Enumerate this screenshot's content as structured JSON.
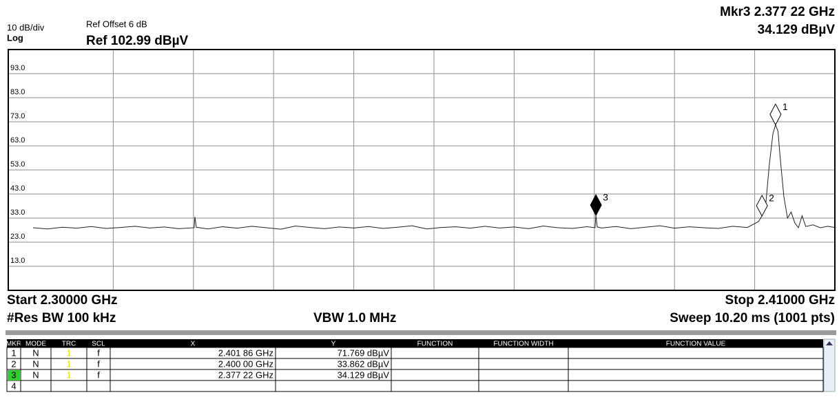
{
  "header": {
    "scale": "10 dB/div",
    "scale_type": "Log",
    "ref_offset": "Ref Offset 6 dB",
    "ref_level": "Ref 102.99 dBµV",
    "marker_freq": "Mkr3 2.377 22 GHz",
    "marker_level": "34.129 dBµV"
  },
  "chart_data": {
    "type": "line",
    "xlim": [
      2.3,
      2.41
    ],
    "ylim": [
      2.99,
      102.99
    ],
    "yticks": [
      {
        "value": 92.99,
        "label": "93.0"
      },
      {
        "value": 82.99,
        "label": "83.0"
      },
      {
        "value": 72.99,
        "label": "73.0"
      },
      {
        "value": 62.99,
        "label": "63.0"
      },
      {
        "value": 52.99,
        "label": "53.0"
      },
      {
        "value": 42.99,
        "label": "43.0"
      },
      {
        "value": 32.99,
        "label": "33.0"
      },
      {
        "value": 22.99,
        "label": "23.0"
      },
      {
        "value": 12.99,
        "label": "13.0"
      }
    ],
    "grid": true,
    "color": "#202020",
    "x": [
      2.3,
      2.302,
      2.304,
      2.306,
      2.308,
      2.31,
      2.312,
      2.314,
      2.316,
      2.318,
      2.32,
      2.3221,
      2.3222,
      2.3224,
      2.324,
      2.326,
      2.328,
      2.33,
      2.332,
      2.334,
      2.336,
      2.338,
      2.34,
      2.342,
      2.344,
      2.346,
      2.348,
      2.35,
      2.352,
      2.354,
      2.356,
      2.358,
      2.36,
      2.362,
      2.364,
      2.366,
      2.368,
      2.37,
      2.372,
      2.374,
      2.376,
      2.3771,
      2.37722,
      2.3774,
      2.378,
      2.38,
      2.382,
      2.384,
      2.386,
      2.388,
      2.39,
      2.392,
      2.394,
      2.396,
      2.398,
      2.3995,
      2.4,
      2.4005,
      2.401,
      2.4015,
      2.40186,
      2.4022,
      2.4025,
      2.403,
      2.4035,
      2.404,
      2.4045,
      2.405,
      2.4055,
      2.406,
      2.407,
      2.408,
      2.409,
      2.41
    ],
    "values": [
      29,
      28.5,
      29.2,
      28.8,
      29.5,
      28.7,
      29.1,
      29.6,
      28.9,
      29.3,
      28.6,
      29,
      33.5,
      29.2,
      28.5,
      29.4,
      28.8,
      29.6,
      29,
      28.4,
      29.7,
      29.1,
      28.6,
      29.3,
      28.9,
      29.5,
      28.7,
      29.2,
      29.8,
      28.5,
      29.1,
      29.4,
      28.8,
      29.6,
      28.9,
      29.3,
      28.6,
      29.7,
      29,
      28.7,
      29.4,
      29,
      34.129,
      29.3,
      28.9,
      29.5,
      28.6,
      29.2,
      29.8,
      28.8,
      29.4,
      29,
      28.7,
      29.6,
      29.1,
      31.5,
      33.862,
      38,
      55,
      68,
      71.769,
      69,
      58,
      42,
      33,
      35.5,
      31,
      29,
      34,
      29.5,
      30.2,
      29,
      29.6,
      29.1
    ],
    "markers": [
      {
        "label": "1",
        "x": 2.40186,
        "y": 71.769
      },
      {
        "label": "2",
        "x": 2.4,
        "y": 33.862
      },
      {
        "label": "3",
        "x": 2.37722,
        "y": 34.129,
        "active": true
      }
    ]
  },
  "footer": {
    "start": "Start 2.30000 GHz",
    "stop": "Stop 2.41000 GHz",
    "rbw": "#Res BW 100 kHz",
    "vbw": "VBW 1.0 MHz",
    "sweep": "Sweep  10.20 ms (1001 pts)"
  },
  "marker_table": {
    "columns": [
      "MKR",
      "MODE",
      "TRC",
      "SCL",
      "X",
      "Y",
      "FUNCTION",
      "FUNCTION WIDTH",
      "FUNCTION VALUE"
    ],
    "rows": [
      [
        "1",
        "N",
        "1",
        "f",
        "2.401 86 GHz",
        "71.769 dBµV"
      ],
      [
        "2",
        "N",
        "1",
        "f",
        "2.400 00 GHz",
        "33.862 dBµV"
      ],
      [
        "3",
        "N",
        "1",
        "f",
        "2.377 22 GHz",
        "34.129 dBµV"
      ],
      [
        "4"
      ]
    ],
    "active_row": 2
  }
}
